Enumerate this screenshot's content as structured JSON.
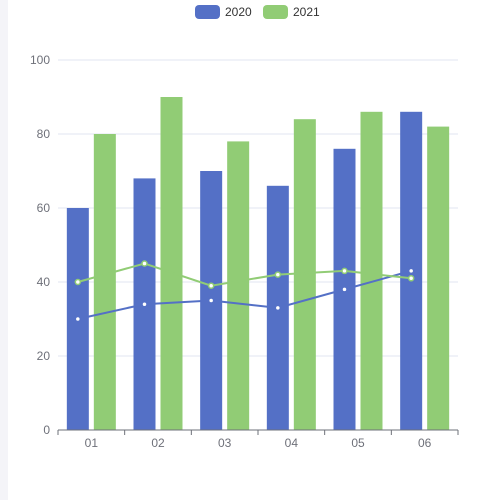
{
  "colors": {
    "series_2020": "#5470c6",
    "series_2021": "#91cc75",
    "grid": "#e0e6f1",
    "axis": "#6e7079",
    "background": "#ffffff",
    "left_strip": "#f4f4f8"
  },
  "chart_data": {
    "type": "bar",
    "title": "",
    "xlabel": "",
    "ylabel": "",
    "categories": [
      "01",
      "02",
      "03",
      "04",
      "05",
      "06"
    ],
    "ylim": [
      0,
      100
    ],
    "yticks": [
      0,
      20,
      40,
      60,
      80,
      100
    ],
    "grid": true,
    "legend_position": "top-center",
    "series": [
      {
        "name": "2020",
        "type": "bar",
        "color": "#5470c6",
        "values": [
          60,
          68,
          70,
          66,
          76,
          86
        ]
      },
      {
        "name": "2021",
        "type": "bar",
        "color": "#91cc75",
        "values": [
          80,
          90,
          78,
          84,
          86,
          82
        ]
      },
      {
        "name": "2020",
        "type": "line",
        "color": "#5470c6",
        "values": [
          30,
          34,
          35,
          33,
          38,
          43
        ]
      },
      {
        "name": "2021",
        "type": "line",
        "color": "#91cc75",
        "values": [
          40,
          45,
          39,
          42,
          43,
          41
        ]
      }
    ]
  }
}
